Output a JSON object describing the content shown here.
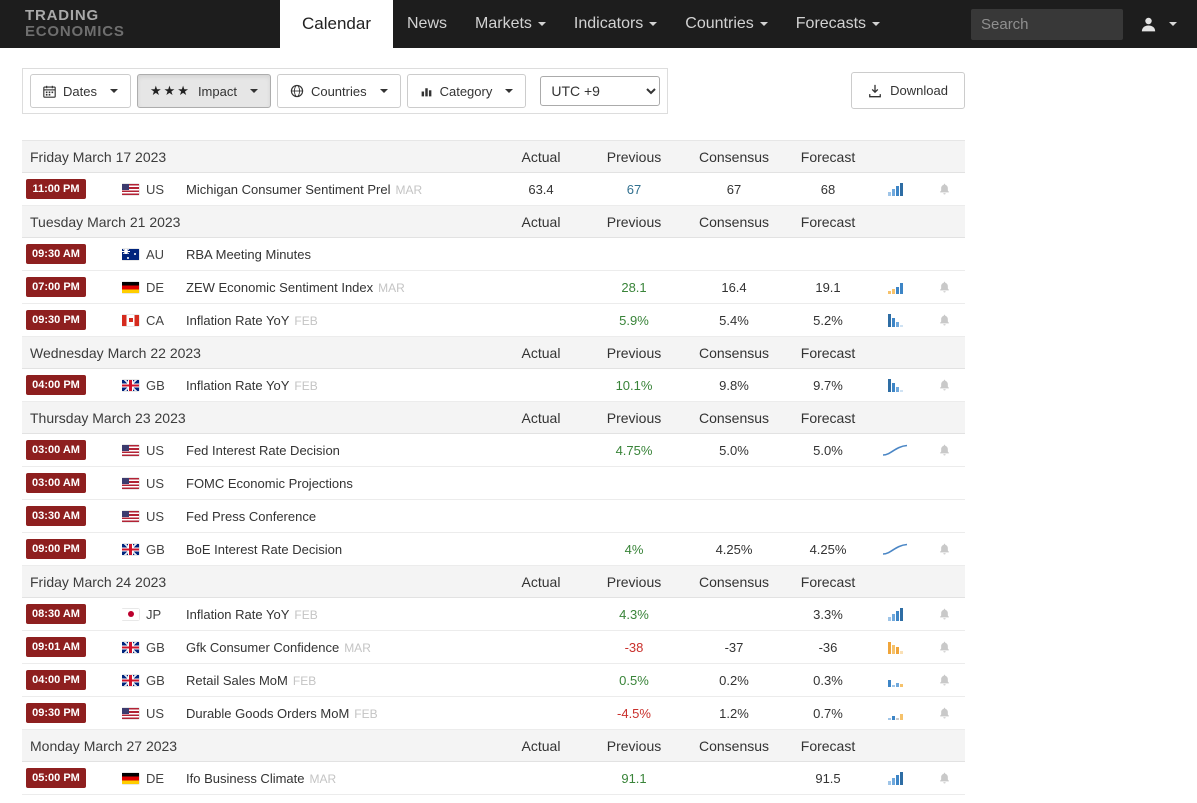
{
  "navbar": {
    "logo": {
      "line1": "TRADING",
      "line2": "ECONOMICS"
    },
    "items": [
      {
        "label": "Calendar",
        "active": true,
        "caret": false
      },
      {
        "label": "News",
        "active": false,
        "caret": false
      },
      {
        "label": "Markets",
        "active": false,
        "caret": true
      },
      {
        "label": "Indicators",
        "active": false,
        "caret": true
      },
      {
        "label": "Countries",
        "active": false,
        "caret": true
      },
      {
        "label": "Forecasts",
        "active": false,
        "caret": true
      }
    ],
    "search_placeholder": "Search"
  },
  "filters": {
    "dates_label": "Dates",
    "impact_stars": "★★★",
    "impact_label": "Impact",
    "countries_label": "Countries",
    "category_label": "Category",
    "timezone_value": "UTC +9",
    "download_label": "Download"
  },
  "calendar": {
    "columns": [
      "Actual",
      "Previous",
      "Consensus",
      "Forecast"
    ],
    "groups": [
      {
        "date": "Friday March 17 2023",
        "rows": [
          {
            "time": "11:00 PM",
            "flag": "us",
            "country": "US",
            "event": "Michigan Consumer Sentiment Prel",
            "period": "MAR",
            "actual": "63.4",
            "previous": "67",
            "prev_color": "blue",
            "consensus": "67",
            "forecast": "68",
            "chart": "bars-up",
            "bell": true
          }
        ]
      },
      {
        "date": "Tuesday March 21 2023",
        "rows": [
          {
            "time": "09:30 AM",
            "flag": "au",
            "country": "AU",
            "event": "RBA Meeting Minutes",
            "period": "",
            "actual": "",
            "previous": "",
            "prev_color": "",
            "consensus": "",
            "forecast": "",
            "chart": "",
            "bell": false
          },
          {
            "time": "07:00 PM",
            "flag": "de",
            "country": "DE",
            "event": "ZEW Economic Sentiment Index",
            "period": "MAR",
            "actual": "",
            "previous": "28.1",
            "prev_color": "green",
            "consensus": "16.4",
            "forecast": "19.1",
            "chart": "bars-mixed",
            "bell": true
          },
          {
            "time": "09:30 PM",
            "flag": "ca",
            "country": "CA",
            "event": "Inflation Rate YoY",
            "period": "FEB",
            "actual": "",
            "previous": "5.9%",
            "prev_color": "green",
            "consensus": "5.4%",
            "forecast": "5.2%",
            "chart": "bars-down",
            "bell": true
          }
        ]
      },
      {
        "date": "Wednesday March 22 2023",
        "rows": [
          {
            "time": "04:00 PM",
            "flag": "gb",
            "country": "GB",
            "event": "Inflation Rate YoY",
            "period": "FEB",
            "actual": "",
            "previous": "10.1%",
            "prev_color": "green",
            "consensus": "9.8%",
            "forecast": "9.7%",
            "chart": "bars-down",
            "bell": true
          }
        ]
      },
      {
        "date": "Thursday March 23 2023",
        "rows": [
          {
            "time": "03:00 AM",
            "flag": "us",
            "country": "US",
            "event": "Fed Interest Rate Decision",
            "period": "",
            "actual": "",
            "previous": "4.75%",
            "prev_color": "green",
            "consensus": "5.0%",
            "forecast": "5.0%",
            "chart": "line",
            "bell": true
          },
          {
            "time": "03:00 AM",
            "flag": "us",
            "country": "US",
            "event": "FOMC Economic Projections",
            "period": "",
            "actual": "",
            "previous": "",
            "prev_color": "",
            "consensus": "",
            "forecast": "",
            "chart": "",
            "bell": false
          },
          {
            "time": "03:30 AM",
            "flag": "us",
            "country": "US",
            "event": "Fed Press Conference",
            "period": "",
            "actual": "",
            "previous": "",
            "prev_color": "",
            "consensus": "",
            "forecast": "",
            "chart": "",
            "bell": false
          },
          {
            "time": "09:00 PM",
            "flag": "gb",
            "country": "GB",
            "event": "BoE Interest Rate Decision",
            "period": "",
            "actual": "",
            "previous": "4%",
            "prev_color": "green",
            "consensus": "4.25%",
            "forecast": "4.25%",
            "chart": "line",
            "bell": true
          }
        ]
      },
      {
        "date": "Friday March 24 2023",
        "rows": [
          {
            "time": "08:30 AM",
            "flag": "jp",
            "country": "JP",
            "event": "Inflation Rate YoY",
            "period": "FEB",
            "actual": "",
            "previous": "4.3%",
            "prev_color": "green",
            "consensus": "",
            "forecast": "3.3%",
            "chart": "bars-up",
            "bell": true
          },
          {
            "time": "09:01 AM",
            "flag": "gb",
            "country": "GB",
            "event": "Gfk Consumer Confidence",
            "period": "MAR",
            "actual": "",
            "previous": "-38",
            "prev_color": "red",
            "consensus": "-37",
            "forecast": "-36",
            "chart": "bars-orange",
            "bell": true
          },
          {
            "time": "04:00 PM",
            "flag": "gb",
            "country": "GB",
            "event": "Retail Sales MoM",
            "period": "FEB",
            "actual": "",
            "previous": "0.5%",
            "prev_color": "green",
            "consensus": "0.2%",
            "forecast": "0.3%",
            "chart": "bars-scatter",
            "bell": true
          },
          {
            "time": "09:30 PM",
            "flag": "us",
            "country": "US",
            "event": "Durable Goods Orders MoM",
            "period": "FEB",
            "actual": "",
            "previous": "-4.5%",
            "prev_color": "red",
            "consensus": "1.2%",
            "forecast": "0.7%",
            "chart": "bars-dash",
            "bell": true
          }
        ]
      },
      {
        "date": "Monday March 27 2023",
        "rows": [
          {
            "time": "05:00 PM",
            "flag": "de",
            "country": "DE",
            "event": "Ifo Business Climate",
            "period": "MAR",
            "actual": "",
            "previous": "91.1",
            "prev_color": "green",
            "consensus": "",
            "forecast": "91.5",
            "chart": "bars-up",
            "bell": true
          }
        ]
      }
    ]
  }
}
